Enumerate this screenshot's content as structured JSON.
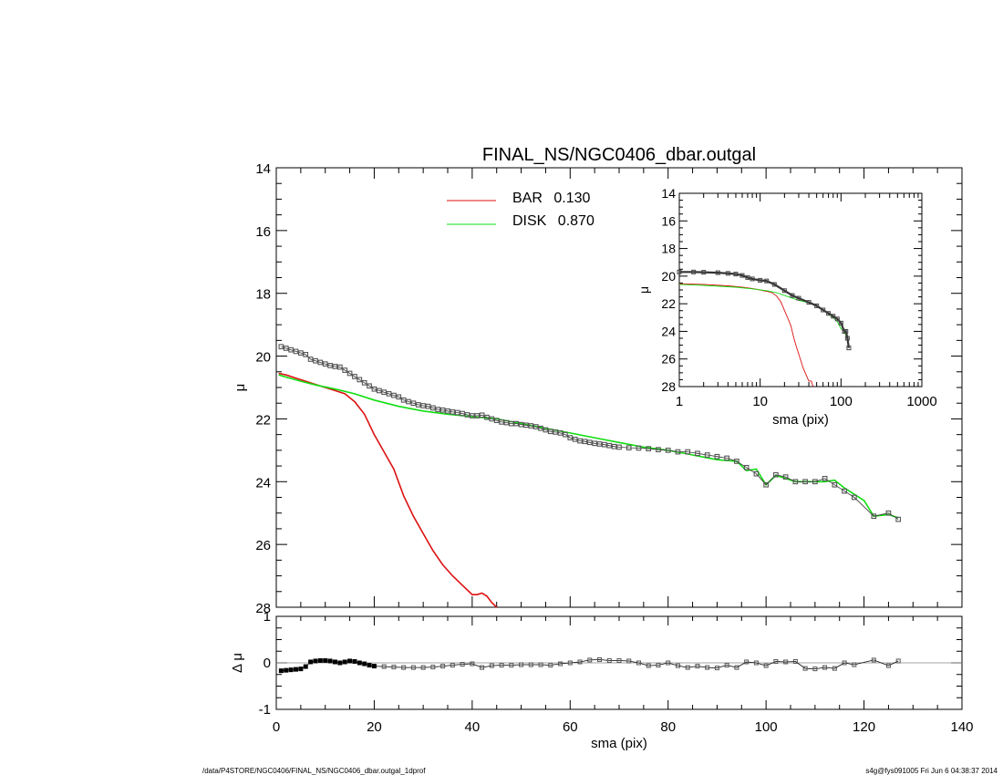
{
  "chart_data": [
    {
      "panel": "main",
      "type": "line",
      "title": "FINAL_NS/NGC0406_dbar.outgal",
      "xlabel": "",
      "ylabel": "μ",
      "xlim": [
        0,
        140
      ],
      "ylim": [
        28,
        14
      ],
      "yticks": [
        14,
        16,
        18,
        20,
        22,
        24,
        26,
        28
      ],
      "legend": [
        {
          "label": "BAR",
          "value": "0.130",
          "color": "#dd1111"
        },
        {
          "label": "DISK",
          "value": "0.870",
          "color": "#11dd11"
        }
      ],
      "series": [
        {
          "name": "data",
          "style": "markers",
          "color": "#555555",
          "x": [
            1,
            2,
            3,
            4,
            5,
            6,
            7,
            8,
            9,
            10,
            11,
            12,
            13,
            14,
            15,
            16,
            17,
            18,
            19,
            20,
            21,
            22,
            23,
            24,
            25,
            26,
            27,
            28,
            29,
            30,
            31,
            32,
            33,
            34,
            35,
            36,
            37,
            38,
            39,
            40,
            41,
            42,
            43,
            44,
            45,
            46,
            47,
            48,
            49,
            50,
            51,
            52,
            53,
            54,
            55,
            56,
            57,
            58,
            59,
            60,
            61,
            62,
            63,
            64,
            65,
            66,
            67,
            68,
            69,
            70,
            72,
            74,
            76,
            78,
            80,
            82,
            84,
            86,
            88,
            90,
            92,
            94,
            96,
            98,
            100,
            102,
            104,
            106,
            108,
            110,
            112,
            114,
            116,
            118,
            122,
            125,
            127
          ],
          "y": [
            19.7,
            19.75,
            19.8,
            19.85,
            19.9,
            19.95,
            20.1,
            20.15,
            20.2,
            20.25,
            20.3,
            20.33,
            20.35,
            20.45,
            20.55,
            20.65,
            20.75,
            20.85,
            20.95,
            21.05,
            21.1,
            21.15,
            21.2,
            21.25,
            21.3,
            21.4,
            21.45,
            21.5,
            21.55,
            21.58,
            21.6,
            21.65,
            21.7,
            21.72,
            21.75,
            21.78,
            21.8,
            21.83,
            21.87,
            21.9,
            21.9,
            21.88,
            21.95,
            22.0,
            22.05,
            22.1,
            22.12,
            22.15,
            22.15,
            22.18,
            22.2,
            22.22,
            22.25,
            22.3,
            22.35,
            22.4,
            22.42,
            22.45,
            22.5,
            22.6,
            22.65,
            22.7,
            22.72,
            22.75,
            22.78,
            22.8,
            22.82,
            22.85,
            22.88,
            22.9,
            22.92,
            22.93,
            22.95,
            22.98,
            23.0,
            23.05,
            23.05,
            23.1,
            23.15,
            23.2,
            23.25,
            23.35,
            23.55,
            23.75,
            24.1,
            23.78,
            23.85,
            24.0,
            24.0,
            24.0,
            23.9,
            24.1,
            24.3,
            24.5,
            25.1,
            25.0,
            25.2
          ]
        },
        {
          "name": "BAR",
          "style": "line",
          "color": "#dd1111",
          "x": [
            0.5,
            2,
            4,
            6,
            8,
            10,
            12,
            14,
            16,
            18,
            20,
            22,
            24,
            26,
            28,
            30,
            32,
            34,
            36,
            38,
            40,
            41,
            42,
            43,
            44,
            45
          ],
          "y": [
            20.55,
            20.6,
            20.7,
            20.8,
            20.9,
            21.0,
            21.1,
            21.2,
            21.45,
            21.85,
            22.5,
            23.05,
            23.6,
            24.45,
            25.1,
            25.65,
            26.2,
            26.65,
            27.0,
            27.3,
            27.6,
            27.6,
            27.55,
            27.65,
            27.85,
            28.0
          ]
        },
        {
          "name": "DISK",
          "style": "line",
          "color": "#11dd11",
          "x": [
            0.5,
            2,
            5,
            8,
            12,
            16,
            20,
            25,
            30,
            35,
            40,
            45,
            50,
            55,
            60,
            65,
            70,
            75,
            80,
            85,
            90,
            94,
            96,
            98,
            100,
            102,
            104,
            106,
            108,
            110,
            112,
            114,
            116,
            118,
            120,
            122,
            125,
            127
          ],
          "y": [
            20.6,
            20.67,
            20.8,
            20.92,
            21.05,
            21.2,
            21.4,
            21.6,
            21.75,
            21.85,
            21.93,
            22.0,
            22.15,
            22.3,
            22.45,
            22.6,
            22.75,
            22.9,
            23.0,
            23.15,
            23.3,
            23.35,
            23.65,
            23.6,
            24.1,
            23.8,
            23.9,
            24.0,
            24.0,
            24.0,
            24.0,
            23.95,
            24.2,
            24.4,
            24.6,
            25.1,
            25.05,
            25.15
          ]
        }
      ]
    },
    {
      "panel": "residual",
      "type": "scatter",
      "xlabel": "sma (pix)",
      "ylabel": "Δ μ",
      "xlim": [
        0,
        140
      ],
      "ylim": [
        -1,
        1
      ],
      "xticks": [
        0,
        20,
        40,
        60,
        80,
        100,
        120,
        140
      ],
      "yticks": [
        -1,
        0,
        1
      ],
      "x": [
        1,
        2,
        3,
        4,
        5,
        6,
        7,
        8,
        9,
        10,
        11,
        12,
        13,
        14,
        15,
        16,
        17,
        18,
        19,
        20,
        22,
        24,
        26,
        28,
        30,
        32,
        34,
        36,
        38,
        40,
        42,
        44,
        46,
        48,
        50,
        52,
        54,
        56,
        58,
        60,
        62,
        64,
        66,
        68,
        70,
        72,
        74,
        76,
        78,
        80,
        82,
        84,
        86,
        88,
        90,
        92,
        94,
        96,
        98,
        100,
        102,
        104,
        106,
        108,
        110,
        112,
        114,
        116,
        118,
        122,
        125,
        127
      ],
      "y": [
        -0.17,
        -0.16,
        -0.15,
        -0.14,
        -0.13,
        -0.08,
        0.02,
        0.04,
        0.05,
        0.05,
        0.04,
        0.02,
        0.0,
        0.02,
        0.04,
        0.03,
        0.0,
        -0.02,
        -0.05,
        -0.07,
        -0.08,
        -0.09,
        -0.1,
        -0.1,
        -0.1,
        -0.09,
        -0.07,
        -0.05,
        -0.03,
        -0.02,
        -0.1,
        -0.06,
        -0.05,
        -0.05,
        -0.04,
        -0.04,
        -0.04,
        -0.05,
        -0.02,
        0.0,
        0.02,
        0.06,
        0.07,
        0.05,
        0.05,
        0.04,
        0.0,
        -0.06,
        -0.05,
        0.0,
        -0.06,
        -0.1,
        -0.07,
        -0.1,
        -0.11,
        -0.05,
        -0.1,
        0.02,
        0.0,
        -0.06,
        0.03,
        0.02,
        0.03,
        -0.12,
        -0.13,
        -0.1,
        -0.12,
        0.0,
        -0.04,
        0.06,
        -0.06,
        0.04
      ]
    },
    {
      "panel": "inset",
      "type": "line",
      "xlabel": "sma (pix)",
      "ylabel": "μ",
      "xscale": "log",
      "xlim": [
        1,
        1000
      ],
      "ylim": [
        28,
        14
      ],
      "xticks": [
        1,
        10,
        100,
        1000
      ],
      "yticks": [
        14,
        16,
        18,
        20,
        22,
        24,
        26,
        28
      ],
      "series": [
        {
          "name": "data",
          "style": "markers",
          "color": "#555555",
          "x": [
            1,
            1.5,
            2,
            3,
            4,
            5,
            6,
            7,
            8,
            10,
            12,
            15,
            20,
            25,
            30,
            40,
            50,
            60,
            70,
            80,
            90,
            100,
            110,
            115,
            120,
            125
          ],
          "y": [
            19.7,
            19.7,
            19.72,
            19.75,
            19.8,
            19.85,
            19.95,
            20.1,
            20.2,
            20.3,
            20.35,
            20.6,
            21.05,
            21.4,
            21.6,
            21.9,
            22.15,
            22.45,
            22.7,
            22.9,
            23.1,
            23.4,
            24.0,
            24.0,
            24.5,
            25.2
          ]
        },
        {
          "name": "BAR",
          "style": "line",
          "color": "#dd1111",
          "x": [
            1,
            2,
            4,
            6,
            8,
            10,
            12,
            14,
            16,
            18,
            20,
            22,
            24,
            26,
            28,
            30,
            34,
            38,
            40,
            43,
            45
          ],
          "y": [
            20.55,
            20.6,
            20.7,
            20.8,
            20.9,
            21.0,
            21.1,
            21.2,
            21.45,
            21.85,
            22.5,
            23.05,
            23.6,
            24.45,
            25.1,
            25.65,
            26.65,
            27.3,
            27.6,
            27.6,
            28.0
          ]
        },
        {
          "name": "DISK",
          "style": "line",
          "color": "#11dd11",
          "x": [
            1,
            2,
            5,
            8,
            12,
            16,
            20,
            30,
            40,
            50,
            60,
            70,
            80,
            90,
            100,
            110,
            120,
            125
          ],
          "y": [
            20.6,
            20.67,
            20.8,
            20.92,
            21.05,
            21.2,
            21.4,
            21.75,
            21.93,
            22.15,
            22.45,
            22.75,
            23.0,
            23.3,
            23.8,
            24.0,
            24.6,
            25.1
          ]
        }
      ]
    }
  ],
  "footer": {
    "left": "/data/P4STORE/NGC0406/FINAL_NS/NGC0406_dbar.outgal_1dprof",
    "right": "s4g@fys091005  Fri Jun  6 04:38:37 2014"
  }
}
